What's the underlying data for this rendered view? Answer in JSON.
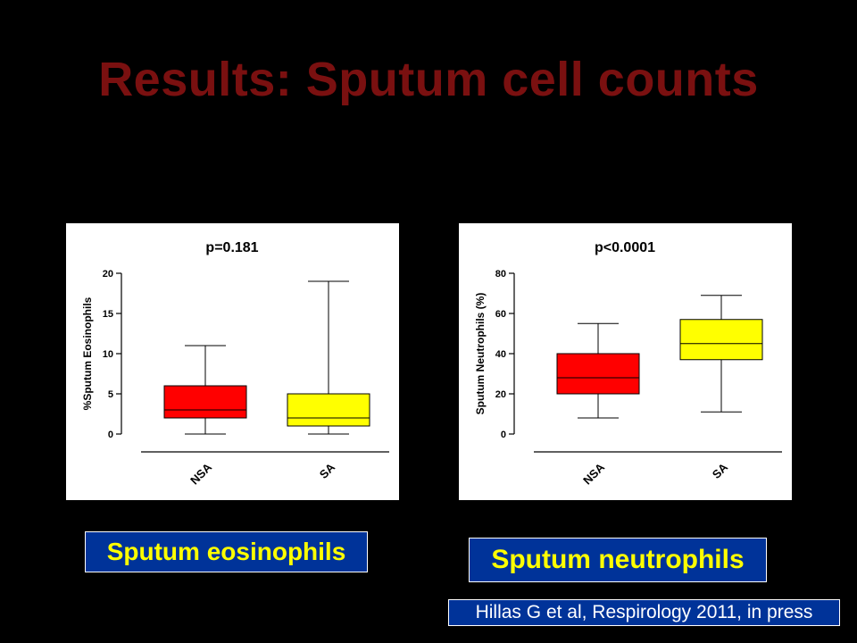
{
  "slide": {
    "title": "Results: Sputum cell counts",
    "citation": "Hillas G et al, Respirology 2011, in press"
  },
  "colors": {
    "background": "#000000",
    "title": "#7a1010",
    "caption_bg": "#003399",
    "caption_text": "#ffff00",
    "nsa_box": "#ff0000",
    "sa_box": "#ffff00"
  },
  "captions": {
    "left": "Sputum eosinophils",
    "right": "Sputum neutrophils"
  },
  "chart_data": [
    {
      "type": "box",
      "title": "p=0.181",
      "xlabel": "",
      "ylabel": "%Sputum Eosinophils",
      "ylim": [
        0,
        20
      ],
      "yticks": [
        0,
        5,
        10,
        15,
        20
      ],
      "categories": [
        "NSA",
        "SA"
      ],
      "boxes": [
        {
          "category": "NSA",
          "min": 0,
          "q1": 2,
          "median": 3,
          "q3": 6,
          "max": 11,
          "color": "#ff0000"
        },
        {
          "category": "SA",
          "min": 0,
          "q1": 1,
          "median": 2,
          "q3": 5,
          "max": 19,
          "color": "#ffff00"
        }
      ]
    },
    {
      "type": "box",
      "title": "p<0.0001",
      "xlabel": "",
      "ylabel": "Sputum Neutrophils (%)",
      "ylim": [
        0,
        80
      ],
      "yticks": [
        0,
        20,
        40,
        60,
        80
      ],
      "categories": [
        "NSA",
        "SA"
      ],
      "boxes": [
        {
          "category": "NSA",
          "min": 8,
          "q1": 20,
          "median": 28,
          "q3": 40,
          "max": 55,
          "color": "#ff0000"
        },
        {
          "category": "SA",
          "min": 11,
          "q1": 37,
          "median": 45,
          "q3": 57,
          "max": 69,
          "color": "#ffff00"
        }
      ]
    }
  ]
}
